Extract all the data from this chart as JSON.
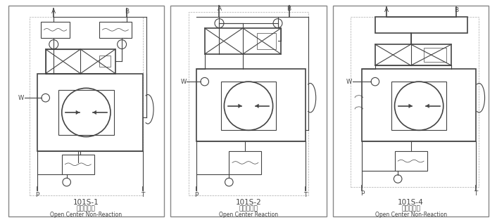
{
  "bg_color": "#ffffff",
  "line_color": "#444444",
  "dashed_color": "#aaaaaa",
  "panels": [
    {
      "label": "101S-1",
      "chinese": "开芯无反应",
      "english": "Open Center Non-Reaction",
      "variant": 1
    },
    {
      "label": "101S-2",
      "chinese": "开芯有反应",
      "english": "Open Center Reaction",
      "variant": 2
    },
    {
      "label": "101S-4",
      "chinese": "开芯无反应",
      "english": "Open Center Non-Reaction",
      "variant": 3
    }
  ]
}
